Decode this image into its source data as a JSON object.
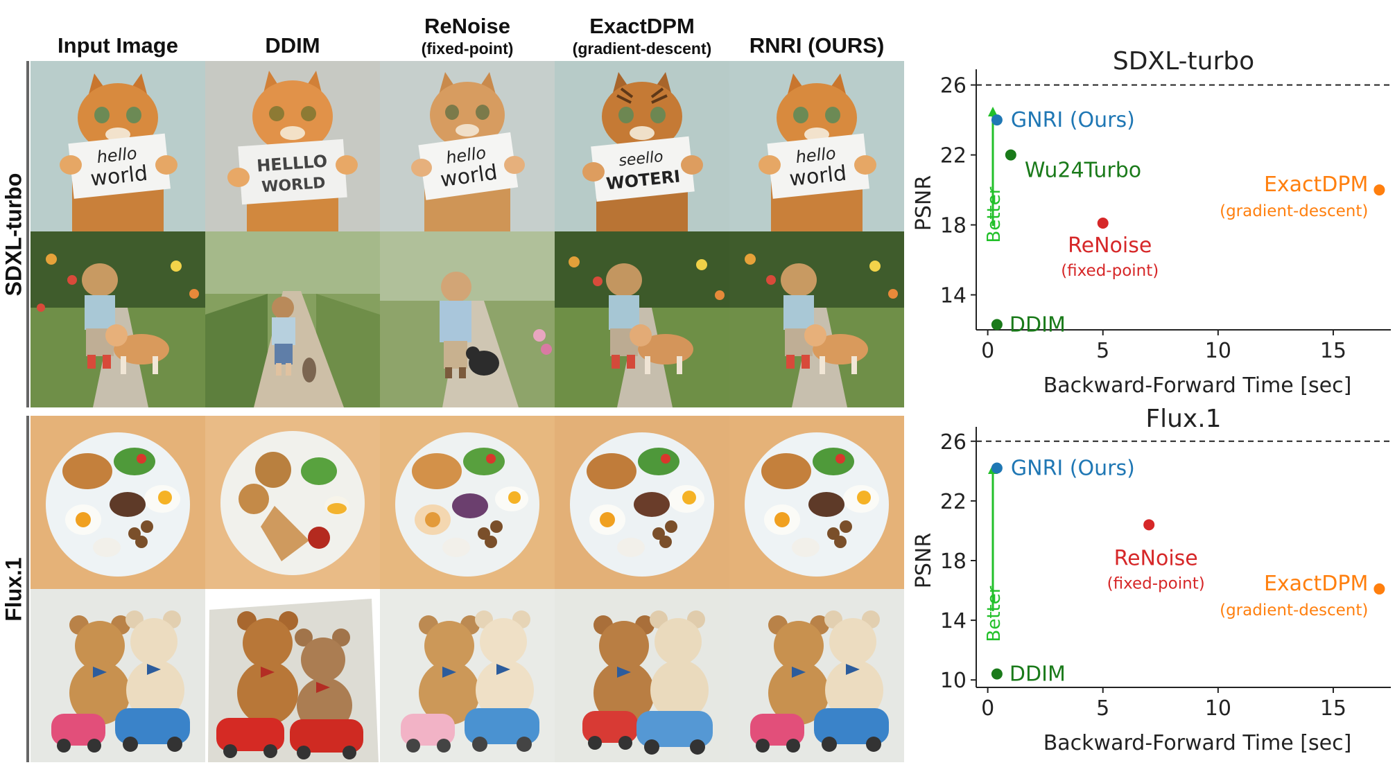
{
  "columns": [
    {
      "main": "Input Image",
      "sub": ""
    },
    {
      "main": "DDIM",
      "sub": ""
    },
    {
      "main": "ReNoise",
      "sub": "(fixed-point)"
    },
    {
      "main": "ExactDPM",
      "sub": "(gradient-descent)"
    },
    {
      "main": "RNRI (OURS)",
      "sub": ""
    }
  ],
  "groups": [
    {
      "label": "SDXL-turbo"
    },
    {
      "label": "Flux.1"
    }
  ],
  "sign_text": [
    {
      "line1": "hello",
      "line2": "world"
    },
    {
      "line1": "HELLLO",
      "line2": "WORLD"
    },
    {
      "line1": "hello",
      "line2": "world"
    },
    {
      "line1": "seello",
      "line2": "WOTERI"
    },
    {
      "line1": "hello",
      "line2": "world"
    }
  ],
  "colors": {
    "gnri": "#1f77b4",
    "wu24": "#1a7a1a",
    "renoise": "#d62728",
    "exactdpm": "#ff7f0e",
    "ddim": "#1a7a1a",
    "better_arrow": "#22c02a"
  },
  "chart_data": [
    {
      "type": "scatter",
      "title": "SDXL-turbo",
      "xlabel": "Backward-Forward Time [sec]",
      "ylabel": "PSNR",
      "xlim": [
        -0.5,
        17.5
      ],
      "ylim": [
        12,
        26.5
      ],
      "xticks": [
        0,
        5,
        10,
        15
      ],
      "yticks": [
        14,
        18,
        22,
        26
      ],
      "reference_line": 26,
      "better_label": "Better",
      "points": [
        {
          "name": "GNRI (Ours)",
          "sub": "",
          "x": 0.4,
          "y": 24.0,
          "color": "#1f77b4"
        },
        {
          "name": "Wu24Turbo",
          "sub": "",
          "x": 1.0,
          "y": 22.0,
          "color": "#1a7a1a"
        },
        {
          "name": "ReNoise",
          "sub": "(fixed-point)",
          "x": 5.0,
          "y": 18.1,
          "color": "#d62728"
        },
        {
          "name": "ExactDPM",
          "sub": "(gradient-descent)",
          "x": 17.0,
          "y": 20.0,
          "color": "#ff7f0e"
        },
        {
          "name": "DDIM",
          "sub": "",
          "x": 0.4,
          "y": 12.3,
          "color": "#1a7a1a"
        }
      ]
    },
    {
      "type": "scatter",
      "title": "Flux.1",
      "xlabel": "Backward-Forward Time [sec]",
      "ylabel": "PSNR",
      "xlim": [
        -0.5,
        17.5
      ],
      "ylim": [
        9.5,
        26.5
      ],
      "xticks": [
        0,
        5,
        10,
        15
      ],
      "yticks": [
        10,
        14,
        18,
        22,
        26
      ],
      "reference_line": 26,
      "better_label": "Better",
      "points": [
        {
          "name": "GNRI (Ours)",
          "sub": "",
          "x": 0.4,
          "y": 24.2,
          "color": "#1f77b4"
        },
        {
          "name": "ReNoise",
          "sub": "(fixed-point)",
          "x": 7.0,
          "y": 20.4,
          "color": "#d62728"
        },
        {
          "name": "ExactDPM",
          "sub": "(gradient-descent)",
          "x": 17.0,
          "y": 16.1,
          "color": "#ff7f0e"
        },
        {
          "name": "DDIM",
          "sub": "",
          "x": 0.4,
          "y": 10.4,
          "color": "#1a7a1a"
        }
      ]
    }
  ]
}
